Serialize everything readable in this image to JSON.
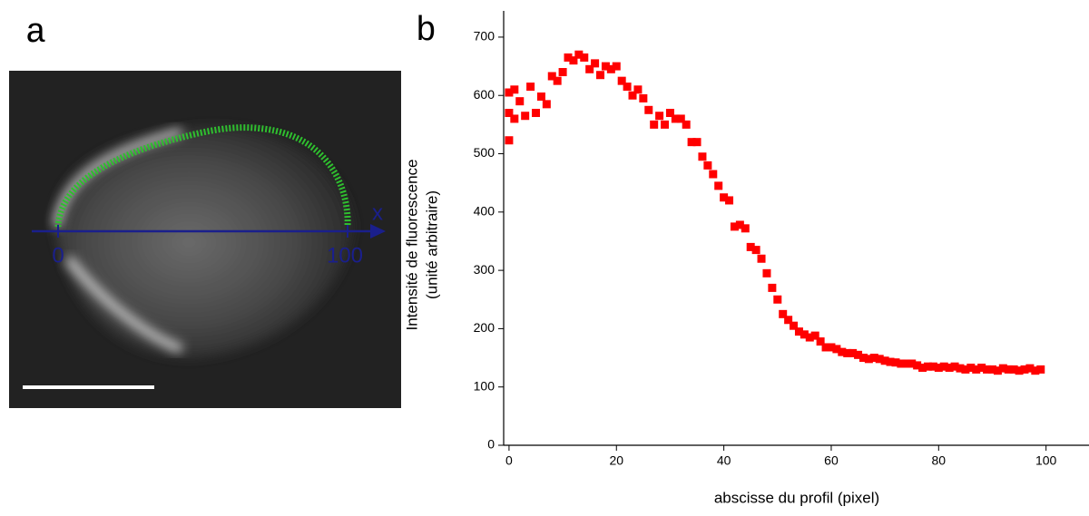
{
  "panel_a": {
    "label": "a",
    "axis_label": "x",
    "ticks": [
      0,
      100
    ]
  },
  "chart_data": {
    "type": "scatter",
    "panel_label": "b",
    "xlabel": "abscisse du profil (pixel)",
    "ylabel": [
      "Intensité de fluorescence",
      "(unité arbitraire)"
    ],
    "x": [
      0,
      0,
      0,
      1,
      1,
      2,
      3,
      4,
      5,
      6,
      7,
      8,
      9,
      10,
      11,
      12,
      13,
      14,
      15,
      16,
      17,
      18,
      19,
      20,
      21,
      22,
      23,
      24,
      25,
      26,
      27,
      28,
      29,
      30,
      31,
      32,
      33,
      34,
      35,
      36,
      37,
      38,
      39,
      40,
      41,
      42,
      43,
      44,
      45,
      46,
      47,
      48,
      49,
      50,
      51,
      52,
      53,
      54,
      55,
      56,
      57,
      58,
      59,
      60,
      61,
      62,
      63,
      64,
      65,
      66,
      67,
      68,
      69,
      70,
      71,
      72,
      73,
      74,
      75,
      76,
      77,
      78,
      79,
      80,
      81,
      82,
      83,
      84,
      85,
      86,
      87,
      88,
      89,
      90,
      91,
      92,
      93,
      94,
      95,
      96,
      97,
      98,
      99
    ],
    "series": [
      {
        "color": "#ff0000",
        "values": [
          523,
          570,
          605,
          560,
          610,
          590,
          565,
          615,
          570,
          598,
          585,
          633,
          625,
          640,
          665,
          660,
          670,
          665,
          645,
          655,
          635,
          650,
          645,
          650,
          625,
          615,
          600,
          610,
          595,
          575,
          550,
          565,
          550,
          570,
          560,
          560,
          550,
          520,
          520,
          495,
          480,
          465,
          445,
          425,
          420,
          375,
          378,
          372,
          340,
          335,
          320,
          295,
          270,
          250,
          225,
          215,
          205,
          195,
          190,
          185,
          188,
          178,
          168,
          168,
          165,
          160,
          158,
          158,
          155,
          150,
          148,
          150,
          148,
          145,
          143,
          142,
          140,
          140,
          140,
          137,
          133,
          135,
          135,
          133,
          135,
          133,
          135,
          132,
          130,
          133,
          130,
          133,
          130,
          130,
          128,
          132,
          130,
          130,
          128,
          130,
          132,
          128,
          130
        ]
      }
    ],
    "xlim": [
      -1,
      108
    ],
    "ylim": [
      0,
      745
    ],
    "xticks": [
      0,
      20,
      40,
      60,
      80,
      100
    ],
    "yticks": [
      0,
      100,
      200,
      300,
      400,
      500,
      600,
      700
    ]
  }
}
